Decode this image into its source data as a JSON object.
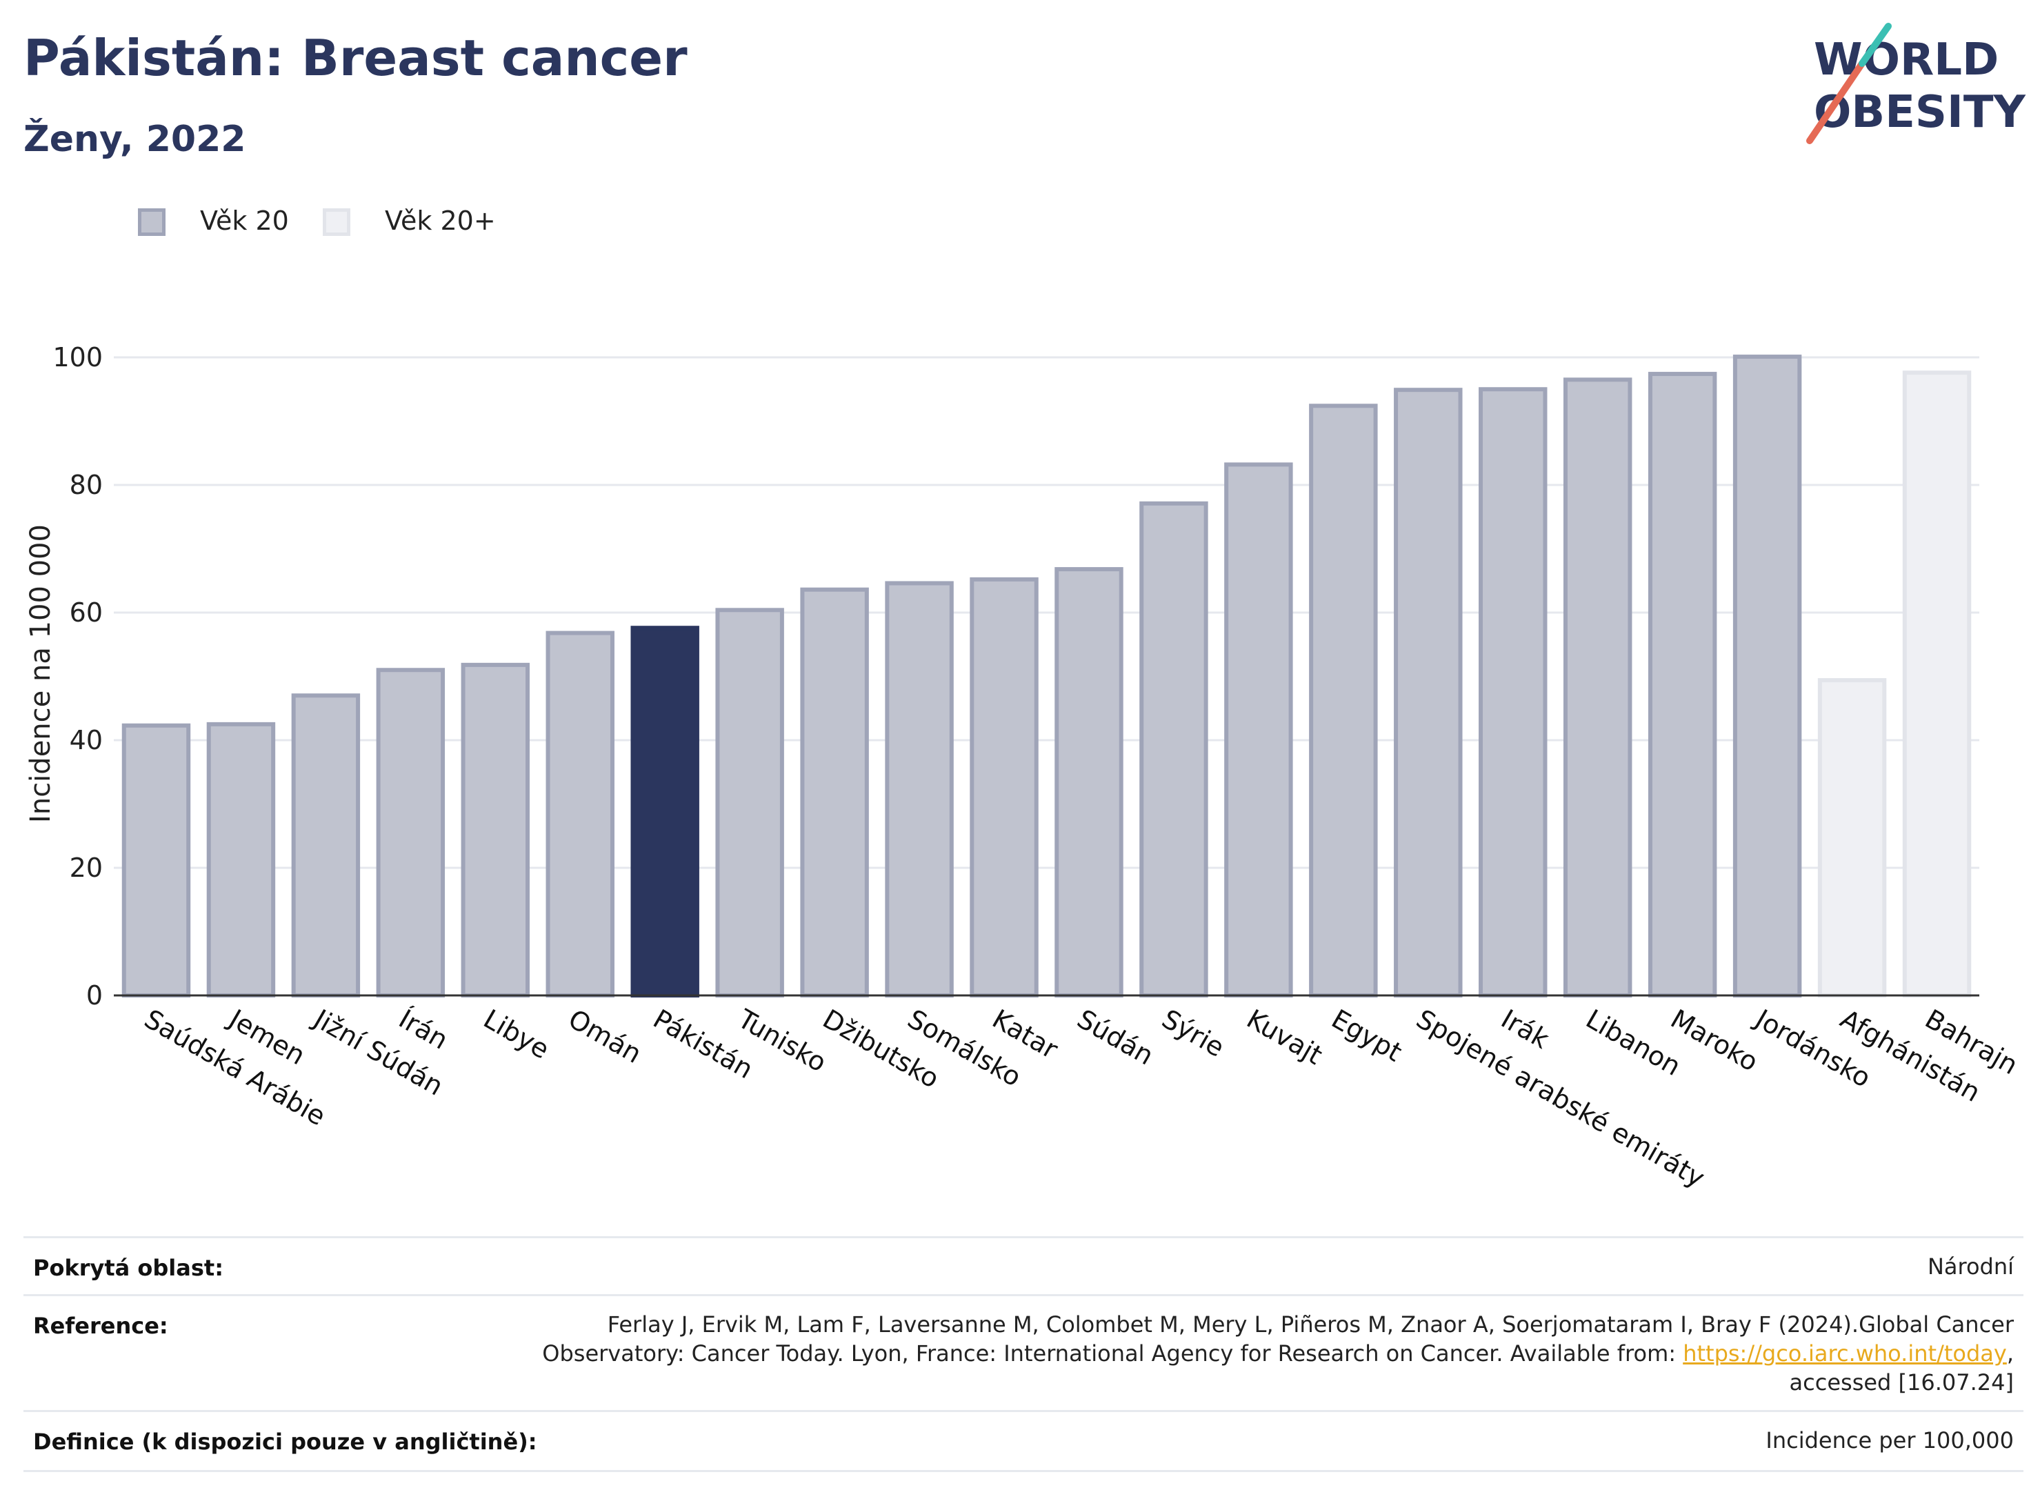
{
  "header": {
    "title": "Pákistán: Breast cancer",
    "subtitle": "Ženy, 2022"
  },
  "logo": {
    "line1": "WORLD",
    "line2": "OBESITY",
    "text_color": "#2b365e",
    "slash_colors": [
      "#e56a55",
      "#3bbfb3"
    ]
  },
  "legend": {
    "items": [
      {
        "label": "Věk 20",
        "fill": "#c0c3cf",
        "stroke": "#9fa4b8"
      },
      {
        "label": "Věk 20+",
        "fill": "#eff0f4",
        "stroke": "#e2e4ea"
      }
    ]
  },
  "chart_data": {
    "type": "bar",
    "ylabel": "Incidence na 100 000",
    "xlabel": "",
    "ylim": [
      0,
      108
    ],
    "yticks": [
      0,
      20,
      40,
      60,
      80,
      100
    ],
    "grid": true,
    "highlight": "Pákistán",
    "colors": {
      "age20_fill": "#c0c3cf",
      "age20_stroke": "#9fa4b8",
      "age20plus_fill": "#eff0f4",
      "age20plus_stroke": "#e2e4ea",
      "highlight_fill": "#2b365e"
    },
    "categories": [
      "Saúdská Arábie",
      "Jemen",
      "Jižní Súdán",
      "Írán",
      "Libye",
      "Omán",
      "Pákistán",
      "Tunisko",
      "Džibutsko",
      "Somálsko",
      "Katar",
      "Súdán",
      "Sýrie",
      "Kuvajt",
      "Egypt",
      "Spojené arabské emiráty",
      "Irák",
      "Libanon",
      "Maroko",
      "Jordánsko",
      "Afghánistán",
      "Bahrajn"
    ],
    "values": [
      42.3,
      42.5,
      47.0,
      51.0,
      51.8,
      56.8,
      57.6,
      60.4,
      63.6,
      64.6,
      65.2,
      66.8,
      77.1,
      83.2,
      92.4,
      94.9,
      95.0,
      96.5,
      97.4,
      100.1,
      49.4,
      97.6
    ],
    "series_of": [
      "Věk 20",
      "Věk 20",
      "Věk 20",
      "Věk 20",
      "Věk 20",
      "Věk 20",
      "Věk 20",
      "Věk 20",
      "Věk 20",
      "Věk 20",
      "Věk 20",
      "Věk 20",
      "Věk 20",
      "Věk 20",
      "Věk 20",
      "Věk 20",
      "Věk 20",
      "Věk 20",
      "Věk 20",
      "Věk 20",
      "Věk 20+",
      "Věk 20+"
    ]
  },
  "footer": {
    "rows": [
      {
        "label": "Pokrytá oblast:",
        "value": "Národní"
      },
      {
        "label": "Reference:",
        "value_line1": "Ferlay J, Ervik M, Lam F, Laversanne M, Colombet M, Mery L, Piñeros M, Znaor A, Soerjomataram I, Bray F (2024).Global Cancer",
        "value_line2_pre": "Observatory: Cancer Today. Lyon, France: International Agency for Research on Cancer. Available from: ",
        "value_link": "https://gco.iarc.who.int/today",
        "value_line2_post": ",",
        "value_line3": "accessed [16.07.24]"
      },
      {
        "label": "Definice (k dispozici pouze v angličtině):",
        "value": "Incidence per 100,000"
      }
    ]
  }
}
